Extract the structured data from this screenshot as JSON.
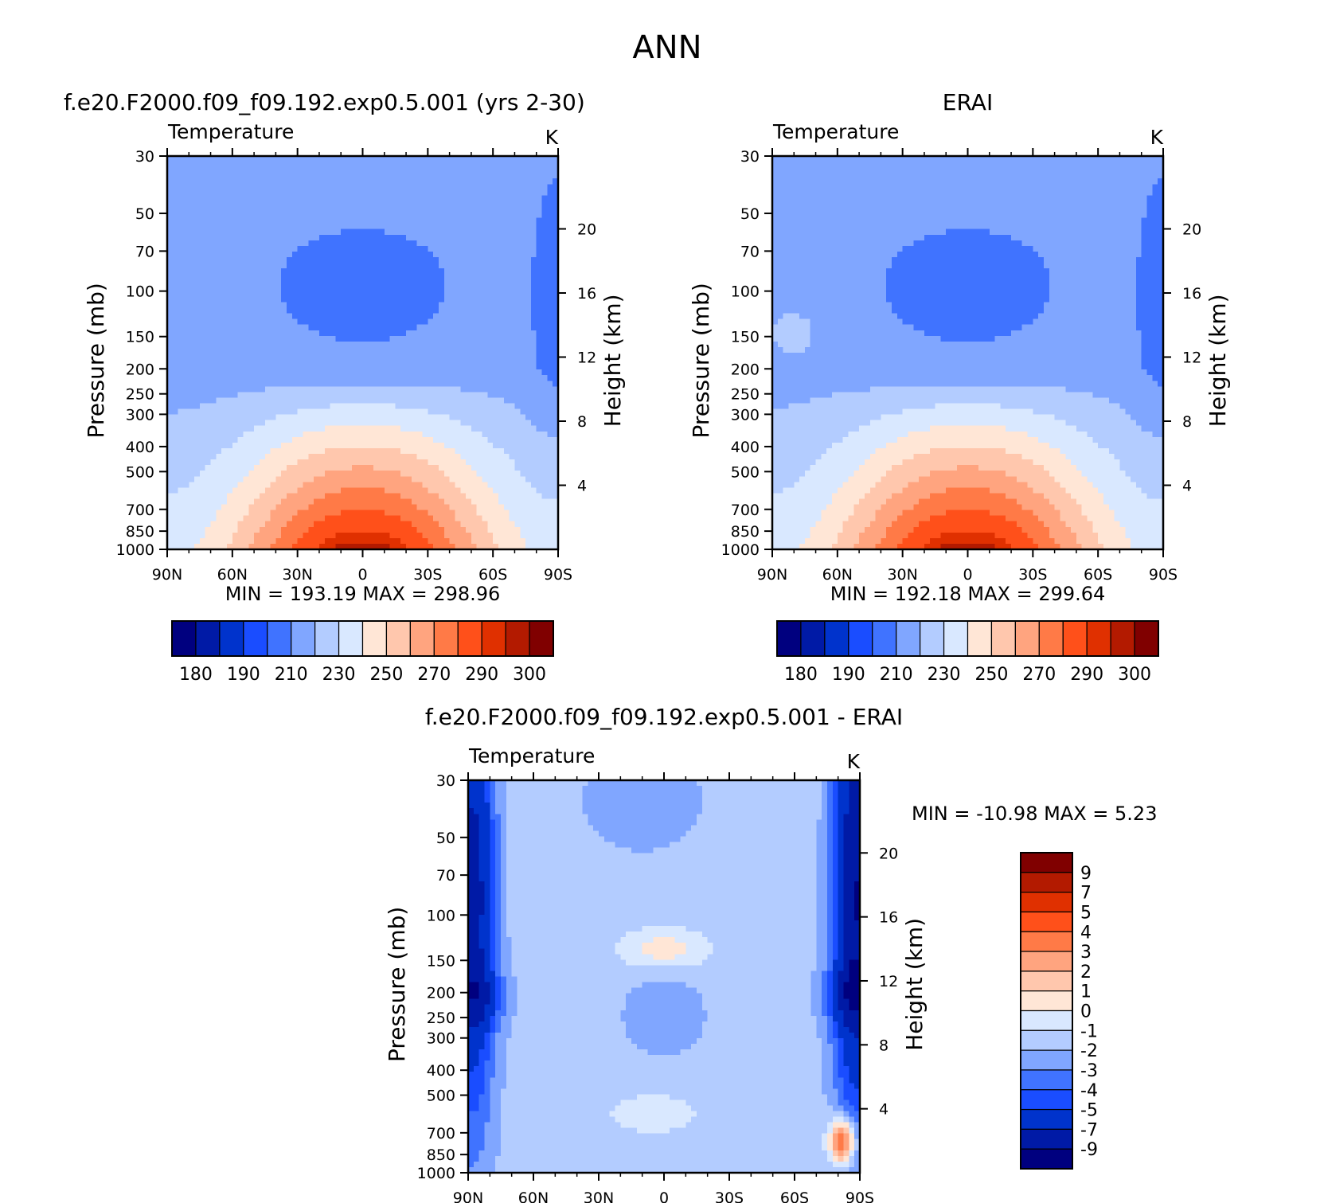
{
  "page_title": "ANN",
  "contour_colors": [
    "#00007f",
    "#001aa6",
    "#0033cc",
    "#1a4dff",
    "#4073ff",
    "#80a6ff",
    "#b3ccff",
    "#d9e8ff",
    "#ffe6d6",
    "#ffc7ad",
    "#ffa47f",
    "#ff7a47",
    "#ff501a",
    "#e03000",
    "#b31a00",
    "#800000"
  ],
  "chart_data": [
    {
      "id": "model",
      "type": "heatmap",
      "title": "f.e20.F2000.f09_f09.192.exp0.5.001 (yrs 2-30)",
      "variable": "Temperature",
      "units": "K",
      "xlabel": "",
      "ylabel": "Pressure (mb)",
      "ylabel_right": "Height (km)",
      "x_ticks": [
        "90N",
        "60N",
        "30N",
        "0",
        "30S",
        "60S",
        "90S"
      ],
      "y_ticks": [
        30,
        50,
        70,
        100,
        150,
        200,
        250,
        300,
        400,
        500,
        700,
        850,
        1000
      ],
      "y_ticks_right": [
        4,
        8,
        12,
        16,
        20
      ],
      "y_scale": "log",
      "x_range": [
        "90N",
        "90S"
      ],
      "y_range": [
        1000,
        30
      ],
      "min": "193.19",
      "max": "298.96",
      "stats_text": "MIN = 193.19 MAX = 298.96",
      "colorbar": {
        "orientation": "horizontal",
        "labels": [
          "180",
          "190",
          "210",
          "230",
          "250",
          "270",
          "290",
          "300"
        ]
      }
    },
    {
      "id": "obs",
      "type": "heatmap",
      "title": "ERAI",
      "variable": "Temperature",
      "units": "K",
      "xlabel": "",
      "ylabel": "Pressure (mb)",
      "ylabel_right": "Height (km)",
      "x_ticks": [
        "90N",
        "60N",
        "30N",
        "0",
        "30S",
        "60S",
        "90S"
      ],
      "y_ticks": [
        30,
        50,
        70,
        100,
        150,
        200,
        250,
        300,
        400,
        500,
        700,
        850,
        1000
      ],
      "y_ticks_right": [
        4,
        8,
        12,
        16,
        20
      ],
      "y_scale": "log",
      "x_range": [
        "90N",
        "90S"
      ],
      "y_range": [
        1000,
        30
      ],
      "min": "192.18",
      "max": "299.64",
      "stats_text": "MIN = 192.18 MAX = 299.64",
      "colorbar": {
        "orientation": "horizontal",
        "labels": [
          "180",
          "190",
          "210",
          "230",
          "250",
          "270",
          "290",
          "300"
        ]
      }
    },
    {
      "id": "diff",
      "type": "heatmap",
      "title": "f.e20.F2000.f09_f09.192.exp0.5.001 - ERAI",
      "variable": "Temperature",
      "units": "K",
      "xlabel": "",
      "ylabel": "Pressure (mb)",
      "ylabel_right": "Height (km)",
      "x_ticks": [
        "90N",
        "60N",
        "30N",
        "0",
        "30S",
        "60S",
        "90S"
      ],
      "y_ticks": [
        30,
        50,
        70,
        100,
        150,
        200,
        250,
        300,
        400,
        500,
        700,
        850,
        1000
      ],
      "y_ticks_right": [
        4,
        8,
        12,
        16,
        20
      ],
      "y_scale": "log",
      "x_range": [
        "90N",
        "90S"
      ],
      "y_range": [
        1000,
        30
      ],
      "min": "-10.98",
      "max": "5.23",
      "stats_text": "MIN = -10.98 MAX = 5.23",
      "colorbar": {
        "orientation": "vertical",
        "labels": [
          "9",
          "7",
          "5",
          "4",
          "3",
          "2",
          "1",
          "0",
          "-1",
          "-2",
          "-3",
          "-4",
          "-5",
          "-7",
          "-9"
        ]
      }
    }
  ]
}
